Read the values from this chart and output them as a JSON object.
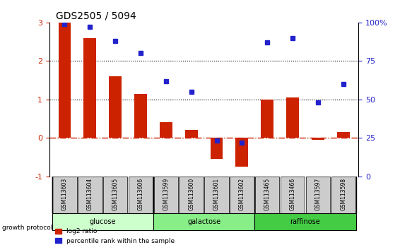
{
  "title": "GDS2505 / 5094",
  "samples": [
    "GSM113603",
    "GSM113604",
    "GSM113605",
    "GSM113606",
    "GSM113599",
    "GSM113600",
    "GSM113601",
    "GSM113602",
    "GSM113465",
    "GSM113466",
    "GSM113597",
    "GSM113598"
  ],
  "log2_ratio": [
    3.0,
    2.6,
    1.6,
    1.15,
    0.4,
    0.2,
    -0.55,
    -0.75,
    1.0,
    1.05,
    -0.05,
    0.15
  ],
  "percentile_rank": [
    99,
    97,
    88,
    80,
    62,
    55,
    23,
    22,
    87,
    90,
    48,
    60
  ],
  "groups": [
    {
      "label": "glucose",
      "color": "#ccffcc",
      "start": 0,
      "end": 4
    },
    {
      "label": "galactose",
      "color": "#88ee88",
      "start": 4,
      "end": 8
    },
    {
      "label": "raffinose",
      "color": "#44cc44",
      "start": 8,
      "end": 12
    }
  ],
  "bar_color": "#cc2200",
  "dot_color": "#2222cc",
  "ylim_left": [
    -1,
    3
  ],
  "ylim_right": [
    0,
    100
  ],
  "yticks_left": [
    -1,
    0,
    1,
    2,
    3
  ],
  "yticks_right": [
    0,
    25,
    50,
    75,
    100
  ],
  "yticklabels_right": [
    "0",
    "25",
    "50",
    "75",
    "100%"
  ],
  "hline_color": "#cc2200",
  "dotted_line_color": "#000000",
  "legend_log2": "log2 ratio",
  "legend_pct": "percentile rank within the sample",
  "growth_protocol_label": "growth protocol",
  "background_color": "#ffffff",
  "ticklabel_area_color": "#cccccc"
}
